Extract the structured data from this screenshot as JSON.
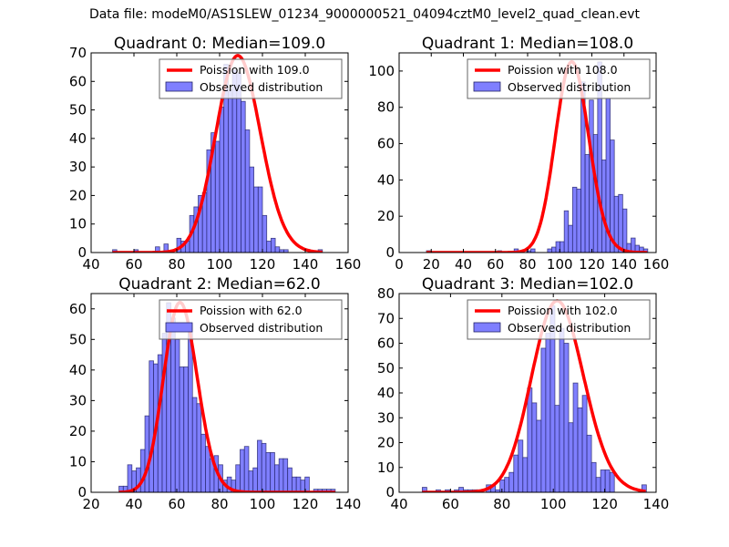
{
  "figure": {
    "suptitle": "Data file: modeM0/AS1SLEW_01234_9000000521_04094cztM0_level2_quad_clean.evt"
  },
  "colors": {
    "bar_fill": "#7f7fff",
    "bar_edge": "#222266",
    "poisson_line": "#ff0000",
    "axes": "#000000"
  },
  "chart_data": [
    {
      "type": "bar",
      "panel": "Quadrant 0",
      "title": "Quadrant 0: Median=109.0",
      "median": 109.0,
      "xlim": [
        40,
        160
      ],
      "ylim": [
        0,
        70
      ],
      "xticks": [
        40,
        60,
        80,
        100,
        120,
        140,
        160
      ],
      "yticks": [
        0,
        10,
        20,
        30,
        40,
        50,
        60,
        70
      ],
      "legend": {
        "position": "top-right",
        "entries": [
          "Poission with 109.0",
          "Observed distribution"
        ]
      },
      "bin_start": 50,
      "bin_width": 2,
      "counts": [
        1,
        0,
        0,
        0,
        0,
        1,
        0,
        0,
        0,
        0,
        2,
        0,
        3,
        0,
        0,
        5,
        4,
        4,
        13,
        16,
        20,
        21,
        36,
        42,
        39,
        51,
        66,
        57,
        64,
        63,
        53,
        43,
        30,
        23,
        23,
        13,
        4,
        5,
        2,
        1,
        1,
        0,
        0,
        0,
        0,
        0,
        0,
        0,
        1
      ],
      "poisson_mean": 109.0,
      "poisson_peak": 69
    },
    {
      "type": "bar",
      "panel": "Quadrant 1",
      "title": "Quadrant 1: Median=108.0",
      "median": 108.0,
      "xlim": [
        0,
        160
      ],
      "ylim": [
        0,
        110
      ],
      "xticks": [
        0,
        20,
        40,
        60,
        80,
        100,
        120,
        140,
        160
      ],
      "yticks": [
        0,
        20,
        40,
        60,
        80,
        100
      ],
      "legend": {
        "position": "top-right",
        "entries": [
          "Poission with 108.0",
          "Observed distribution"
        ]
      },
      "bin_start": 17,
      "bin_width": 2.6,
      "counts": [
        1,
        0,
        0,
        0,
        0,
        0,
        0,
        0,
        0,
        0,
        0,
        0,
        0,
        0,
        0,
        0,
        0,
        1,
        0,
        0,
        0,
        2,
        0,
        0,
        1,
        2,
        0,
        0,
        0,
        2,
        3,
        6,
        6,
        23,
        15,
        36,
        35,
        94,
        54,
        84,
        65,
        105,
        51,
        85,
        62,
        31,
        32,
        24,
        5,
        8,
        4,
        3,
        2
      ],
      "poisson_mean": 108.0,
      "poisson_peak": 105
    },
    {
      "type": "bar",
      "panel": "Quadrant 2",
      "title": "Quadrant 2: Median=62.0",
      "median": 62.0,
      "xlim": [
        20,
        140
      ],
      "ylim": [
        0,
        65
      ],
      "xticks": [
        20,
        40,
        60,
        80,
        100,
        120,
        140
      ],
      "yticks": [
        0,
        10,
        20,
        30,
        40,
        50,
        60
      ],
      "legend": {
        "position": "top-right",
        "entries": [
          "Poission with 62.0",
          "Observed distribution"
        ]
      },
      "bin_start": 33,
      "bin_width": 2.02,
      "counts": [
        2,
        2,
        9,
        7,
        8,
        14,
        25,
        43,
        42,
        45,
        52,
        62,
        57,
        50,
        41,
        41,
        55,
        31,
        29,
        19,
        15,
        11,
        12,
        9,
        4,
        5,
        4,
        9,
        14,
        15,
        7,
        8,
        17,
        16,
        13,
        13,
        9,
        11,
        11,
        8,
        5,
        5,
        4,
        5,
        0,
        1,
        1,
        1,
        1,
        1
      ],
      "poisson_mean": 62.0,
      "poisson_peak": 62
    },
    {
      "type": "bar",
      "panel": "Quadrant 3",
      "title": "Quadrant 3: Median=102.0",
      "median": 102.0,
      "xlim": [
        40,
        140
      ],
      "ylim": [
        0,
        80
      ],
      "xticks": [
        40,
        60,
        80,
        100,
        120,
        140
      ],
      "yticks": [
        0,
        10,
        20,
        30,
        40,
        50,
        60,
        70,
        80
      ],
      "legend": {
        "position": "top-right",
        "entries": [
          "Poission with 102.0",
          "Observed distribution"
        ]
      },
      "bin_start": 49,
      "bin_width": 1.78,
      "counts": [
        2,
        0,
        0,
        1,
        0,
        1,
        0,
        1,
        2,
        1,
        1,
        1,
        1,
        0,
        3,
        3,
        1,
        5,
        6,
        8,
        15,
        21,
        14,
        42,
        36,
        29,
        58,
        64,
        75,
        35,
        66,
        60,
        28,
        44,
        34,
        39,
        23,
        12,
        6,
        9,
        9,
        8,
        0,
        0,
        0,
        0,
        0,
        0,
        3
      ],
      "poisson_mean": 102.0,
      "poisson_peak": 77
    }
  ]
}
